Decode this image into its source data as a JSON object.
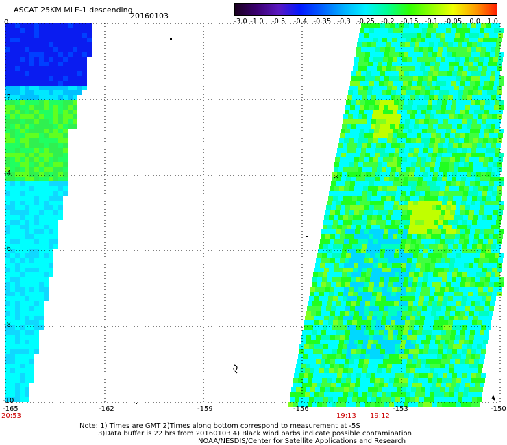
{
  "header": {
    "title": "ASCAT 25KM MLE-1 descending",
    "date": "20160103"
  },
  "colorbar": {
    "labels": [
      "-3.0",
      "-1.0",
      "-0.5",
      "-0.4",
      "-0.35",
      "-0.3",
      "-0.25",
      "-0.2",
      "-0.15",
      "-0.1",
      "-0.05",
      "0.0",
      "1.0"
    ],
    "colors": [
      "#1a0020",
      "#3a0070",
      "#5a18c0",
      "#0018ff",
      "#0060ff",
      "#00b0ff",
      "#00f0ff",
      "#00ff90",
      "#30ff00",
      "#90ff00",
      "#f0ff00",
      "#ffa000",
      "#ff2000"
    ]
  },
  "axes": {
    "lat_labels": [
      "0",
      "-2",
      "-4",
      "-6",
      "-8",
      "-10"
    ],
    "lon_labels": [
      "-165",
      "-162",
      "-159",
      "-156",
      "-153",
      "-150"
    ]
  },
  "times": {
    "left": "20:53",
    "mid1": "19:13",
    "mid2": "19:12"
  },
  "notes": {
    "line1": "Note: 1) Times are GMT 2)Times along bottom correspond to measurement at -5S",
    "line2": "3)Data buffer is 22 hrs from 20160103 4) Black wind barbs indicate possible contamination",
    "line3": "NOAA/NESDIS/Center for Satellite Applications and Research"
  },
  "colors": {
    "deep_blue": "#0a1cf0",
    "cyan": "#00ffff",
    "green": "#20ff20",
    "yellow_green": "#c0ff00"
  }
}
